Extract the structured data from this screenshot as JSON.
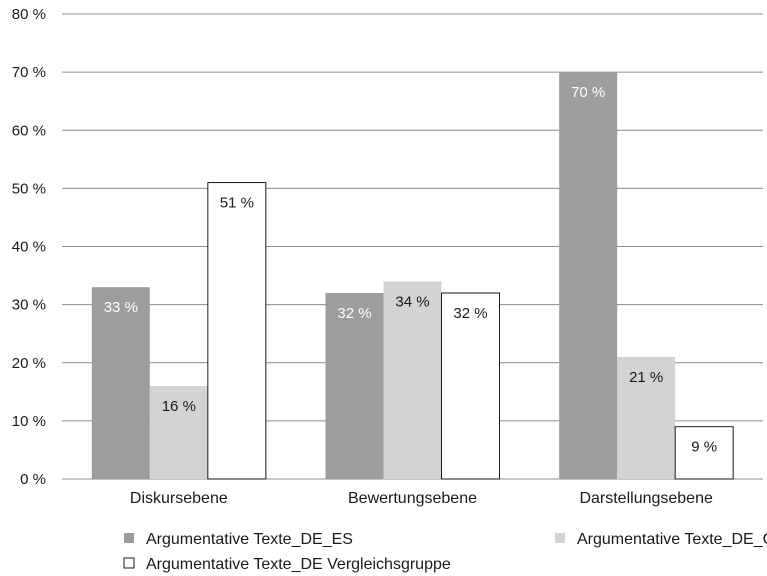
{
  "chart_data": {
    "type": "bar",
    "categories": [
      "Diskursebene",
      "Bewertungsebene",
      "Darstellungsebene"
    ],
    "series": [
      {
        "name": "Argumentative Texte_DE_ES",
        "values": [
          33,
          32,
          70
        ],
        "labels": [
          "33 %",
          "32 %",
          "70 %"
        ],
        "color": "#9d9d9d"
      },
      {
        "name": "Argumentative Texte_DE_G",
        "values": [
          16,
          34,
          21
        ],
        "labels": [
          "16 %",
          "34 %",
          "21 %"
        ],
        "color": "#d3d3d3"
      },
      {
        "name": "Argumentative Texte_DE Vergleichsgruppe",
        "values": [
          51,
          32,
          9
        ],
        "labels": [
          "51 %",
          "32 %",
          "9 %"
        ],
        "color": "#ffffff"
      }
    ],
    "ylim": [
      0,
      80
    ],
    "yticks": [
      0,
      10,
      20,
      30,
      40,
      50,
      60,
      70,
      80
    ],
    "ytick_labels": [
      "0 %",
      "10 %",
      "20 %",
      "30 %",
      "40 %",
      "50 %",
      "60 %",
      "70 %",
      "80 %"
    ],
    "grid": true,
    "legend_position": "bottom",
    "label_colors": [
      "#ffffff",
      "#1a1a1a",
      "#1a1a1a"
    ]
  }
}
